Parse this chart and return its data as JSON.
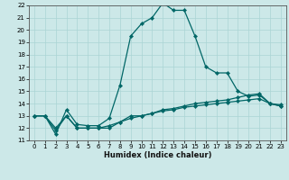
{
  "xlabel": "Humidex (Indice chaleur)",
  "xlim": [
    -0.5,
    23.5
  ],
  "ylim": [
    11,
    22
  ],
  "xticks": [
    0,
    1,
    2,
    3,
    4,
    5,
    6,
    7,
    8,
    9,
    10,
    11,
    12,
    13,
    14,
    15,
    16,
    17,
    18,
    19,
    20,
    21,
    22,
    23
  ],
  "yticks": [
    11,
    12,
    13,
    14,
    15,
    16,
    17,
    18,
    19,
    20,
    21,
    22
  ],
  "background_color": "#cce8e8",
  "grid_color": "#aad4d4",
  "line_color": "#006666",
  "series1_x": [
    0,
    1,
    2,
    3,
    4,
    5,
    6,
    7,
    8,
    9,
    10,
    11,
    12,
    13,
    14,
    15,
    16,
    17,
    18,
    19,
    20,
    21,
    22,
    23
  ],
  "series1_y": [
    13.0,
    13.0,
    11.5,
    13.5,
    12.3,
    12.2,
    12.2,
    12.8,
    15.5,
    19.5,
    20.5,
    21.0,
    22.2,
    21.6,
    21.6,
    19.5,
    17.0,
    16.5,
    16.5,
    15.0,
    14.6,
    14.7,
    14.0,
    13.8
  ],
  "series2_x": [
    0,
    1,
    2,
    3,
    4,
    5,
    6,
    7,
    8,
    9,
    10,
    11,
    12,
    13,
    14,
    15,
    16,
    17,
    18,
    19,
    20,
    21,
    22,
    23
  ],
  "series2_y": [
    13.0,
    13.0,
    11.8,
    13.0,
    12.0,
    12.0,
    12.0,
    12.0,
    12.5,
    13.0,
    13.0,
    13.2,
    13.5,
    13.6,
    13.8,
    14.0,
    14.1,
    14.2,
    14.3,
    14.5,
    14.7,
    14.8,
    14.0,
    13.9
  ],
  "series3_x": [
    0,
    1,
    2,
    3,
    4,
    5,
    6,
    7,
    8,
    9,
    10,
    11,
    12,
    13,
    14,
    15,
    16,
    17,
    18,
    19,
    20,
    21,
    22,
    23
  ],
  "series3_y": [
    13.0,
    13.0,
    12.0,
    13.0,
    12.0,
    12.0,
    12.0,
    12.2,
    12.5,
    12.8,
    13.0,
    13.2,
    13.4,
    13.5,
    13.7,
    13.8,
    13.9,
    14.0,
    14.1,
    14.2,
    14.3,
    14.4,
    14.0,
    13.8
  ],
  "tick_fontsize": 5.0,
  "xlabel_fontsize": 6.0,
  "linewidth": 0.9,
  "markersize": 2.2
}
